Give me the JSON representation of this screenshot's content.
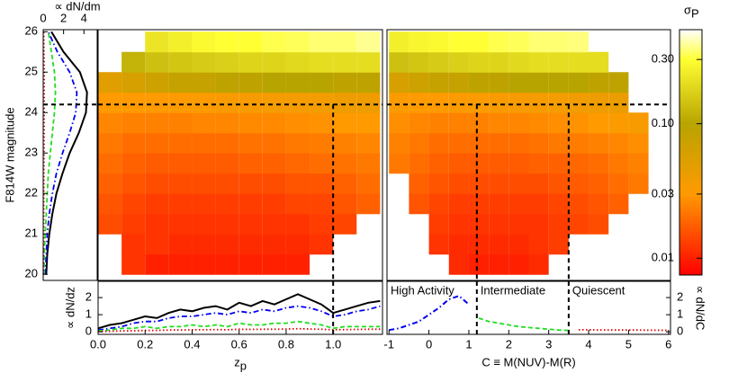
{
  "chart_data": [
    {
      "type": "line",
      "orientation": "horizontal",
      "xlabel": "∝ dN/dm",
      "ylabel": "F814W magnitude",
      "xlim": [
        0,
        5.3
      ],
      "xticks": [
        0,
        2,
        4
      ],
      "ylim": [
        19.85,
        26.05
      ],
      "yticks": [
        20,
        21,
        22,
        23,
        24,
        25,
        26
      ],
      "hlines": [
        24.2
      ],
      "y": [
        20,
        20.5,
        21,
        21.5,
        22,
        22.5,
        23,
        23.5,
        24,
        24.5,
        25,
        25.5,
        26
      ],
      "series": [
        {
          "color": "#000000",
          "dash": "solid",
          "values": [
            0.3,
            0.4,
            0.6,
            0.9,
            1.3,
            1.9,
            2.6,
            3.5,
            4.2,
            4.3,
            3.6,
            2.0,
            0.8
          ]
        },
        {
          "color": "#0000ee",
          "dash": "dashdot",
          "values": [
            0.2,
            0.3,
            0.4,
            0.6,
            0.9,
            1.3,
            1.9,
            2.6,
            3.2,
            3.3,
            2.6,
            1.4,
            0.5
          ]
        },
        {
          "color": "#22dd22",
          "dash": "dashed",
          "values": [
            0.1,
            0.1,
            0.2,
            0.3,
            0.4,
            0.5,
            0.7,
            0.9,
            1.1,
            1.2,
            1.1,
            0.8,
            0.5
          ]
        },
        {
          "color": "#dd0000",
          "dash": "dotted",
          "values": [
            0.02,
            0.03,
            0.04,
            0.05,
            0.06,
            0.07,
            0.08,
            0.09,
            0.1,
            0.1,
            0.1,
            0.08,
            0.05
          ]
        }
      ]
    },
    {
      "type": "heatmap",
      "xlim": [
        0,
        1.21
      ],
      "ylim": [
        19.85,
        26.05
      ],
      "hlines": [
        24.2
      ],
      "vlines": [
        1.0
      ],
      "xbins": [
        0,
        0.1,
        0.2,
        0.3,
        0.4,
        0.5,
        0.6,
        0.7,
        0.8,
        0.9,
        1.0,
        1.1,
        1.2
      ],
      "ybins": [
        20,
        20.5,
        21,
        21.5,
        22,
        22.5,
        23,
        23.5,
        24,
        24.5,
        25,
        25.5,
        26
      ],
      "values": [
        [
          null,
          0.012,
          0.01,
          0.01,
          0.01,
          0.01,
          0.01,
          0.01,
          0.01,
          null,
          null,
          null
        ],
        [
          null,
          0.012,
          0.012,
          0.011,
          0.011,
          0.011,
          0.011,
          0.011,
          0.011,
          0.012,
          null,
          null
        ],
        [
          0.015,
          0.013,
          0.012,
          0.012,
          0.012,
          0.012,
          0.012,
          0.012,
          0.012,
          0.013,
          0.014,
          null
        ],
        [
          0.016,
          0.014,
          0.013,
          0.013,
          0.013,
          0.013,
          0.013,
          0.013,
          0.014,
          0.014,
          0.016,
          0.018
        ],
        [
          0.018,
          0.016,
          0.015,
          0.015,
          0.015,
          0.015,
          0.015,
          0.015,
          0.016,
          0.016,
          0.018,
          0.02
        ],
        [
          0.02,
          0.018,
          0.017,
          0.017,
          0.017,
          0.017,
          0.018,
          0.018,
          0.019,
          0.02,
          0.021,
          0.022
        ],
        [
          0.022,
          0.02,
          0.02,
          0.02,
          0.02,
          0.02,
          0.021,
          0.021,
          0.022,
          0.023,
          0.024,
          0.025
        ],
        [
          0.025,
          0.024,
          0.024,
          0.024,
          0.025,
          0.025,
          0.026,
          0.026,
          0.027,
          0.028,
          0.03,
          0.03
        ],
        [
          0.03,
          0.03,
          0.03,
          0.031,
          0.032,
          0.033,
          0.034,
          0.035,
          0.036,
          0.037,
          0.04,
          0.04
        ],
        [
          0.05,
          0.06,
          0.07,
          0.08,
          0.08,
          0.09,
          0.09,
          0.1,
          0.1,
          0.1,
          0.09,
          0.09
        ],
        [
          null,
          0.12,
          0.14,
          0.15,
          0.16,
          0.17,
          0.18,
          0.18,
          0.19,
          0.2,
          0.2,
          0.2
        ],
        [
          null,
          null,
          0.22,
          0.25,
          0.28,
          0.3,
          0.3,
          0.32,
          0.33,
          0.35,
          0.35,
          0.38
        ]
      ]
    },
    {
      "type": "heatmap",
      "xlim": [
        -1.05,
        6.05
      ],
      "ylim": [
        19.85,
        26.05
      ],
      "hlines": [
        24.2
      ],
      "vlines": [
        1.2,
        3.5
      ],
      "xbins": [
        -1,
        -0.5,
        0,
        0.5,
        1,
        1.5,
        2,
        2.5,
        3,
        3.5,
        4,
        4.5,
        5,
        5.5,
        6
      ],
      "ybins": [
        20,
        20.5,
        21,
        21.5,
        22,
        22.5,
        23,
        23.5,
        24,
        24.5,
        25,
        25.5,
        26
      ],
      "values": [
        [
          null,
          null,
          null,
          0.011,
          0.01,
          0.01,
          0.01,
          0.011,
          null,
          null,
          null,
          null,
          null,
          null
        ],
        [
          null,
          null,
          0.012,
          0.011,
          0.011,
          0.011,
          0.011,
          0.012,
          0.013,
          null,
          null,
          null,
          null,
          null
        ],
        [
          null,
          null,
          0.013,
          0.012,
          0.012,
          0.012,
          0.012,
          0.012,
          0.013,
          0.014,
          0.015,
          null,
          null,
          null
        ],
        [
          null,
          0.016,
          0.014,
          0.013,
          0.013,
          0.013,
          0.013,
          0.013,
          0.014,
          0.015,
          0.016,
          0.018,
          null,
          null
        ],
        [
          null,
          0.018,
          0.016,
          0.015,
          0.015,
          0.015,
          0.015,
          0.015,
          0.016,
          0.017,
          0.018,
          0.02,
          0.022,
          null
        ],
        [
          0.022,
          0.02,
          0.018,
          0.017,
          0.017,
          0.017,
          0.017,
          0.018,
          0.018,
          0.019,
          0.02,
          0.022,
          0.024,
          null
        ],
        [
          0.024,
          0.022,
          0.02,
          0.02,
          0.02,
          0.02,
          0.02,
          0.021,
          0.022,
          0.023,
          0.024,
          0.025,
          0.027,
          null
        ],
        [
          0.027,
          0.025,
          0.024,
          0.024,
          0.024,
          0.025,
          0.025,
          0.026,
          0.027,
          0.028,
          0.03,
          0.032,
          0.034,
          null
        ],
        [
          0.032,
          0.03,
          0.03,
          0.031,
          0.032,
          0.033,
          0.034,
          0.035,
          0.036,
          0.038,
          0.04,
          0.042,
          null,
          null
        ],
        [
          0.06,
          0.07,
          0.08,
          0.08,
          0.09,
          0.09,
          0.1,
          0.1,
          0.1,
          0.1,
          0.09,
          0.09,
          null,
          null
        ],
        [
          0.14,
          0.15,
          0.16,
          0.17,
          0.18,
          0.18,
          0.19,
          0.2,
          0.2,
          0.2,
          0.2,
          null,
          null,
          null
        ],
        [
          0.25,
          0.27,
          0.28,
          0.3,
          0.3,
          0.32,
          0.33,
          0.35,
          0.35,
          0.36,
          null,
          null,
          null,
          null
        ]
      ]
    },
    {
      "type": "line",
      "xlabel": "z",
      "xlabel_sub": "p",
      "ylabel": "∝ dN/dz",
      "yaxis_side": "left",
      "xlim": [
        0,
        1.21
      ],
      "xticks": [
        {
          "value": 0,
          "label": "0.0"
        },
        {
          "value": 0.2,
          "label": "0.2"
        },
        {
          "value": 0.4,
          "label": "0.4"
        },
        {
          "value": 0.6,
          "label": "0.6"
        },
        {
          "value": 0.8,
          "label": "0.8"
        },
        {
          "value": 1,
          "label": "1.0"
        }
      ],
      "ylim": [
        -0.15,
        2.95
      ],
      "yticks": [
        0,
        1,
        2
      ],
      "vlines": [
        1.0
      ],
      "x": [
        0,
        0.05,
        0.1,
        0.15,
        0.2,
        0.25,
        0.3,
        0.35,
        0.4,
        0.45,
        0.5,
        0.55,
        0.6,
        0.65,
        0.7,
        0.75,
        0.8,
        0.85,
        0.9,
        0.95,
        1.0,
        1.05,
        1.1,
        1.15,
        1.2
      ],
      "series": [
        {
          "color": "#000000",
          "dash": "solid",
          "values": [
            0.2,
            0.4,
            0.5,
            0.7,
            0.9,
            0.8,
            1.1,
            1.3,
            1.2,
            1.4,
            1.5,
            1.3,
            1.7,
            1.5,
            1.8,
            1.6,
            1.9,
            2.2,
            1.9,
            1.6,
            1.1,
            1.3,
            1.5,
            1.7,
            1.8
          ]
        },
        {
          "color": "#0000ee",
          "dash": "dashdot",
          "values": [
            0.1,
            0.2,
            0.3,
            0.5,
            0.6,
            0.6,
            0.8,
            0.9,
            0.9,
            1.0,
            1.1,
            1.0,
            1.2,
            1.1,
            1.3,
            1.2,
            1.4,
            1.5,
            1.4,
            1.2,
            0.9,
            1.0,
            1.2,
            1.3,
            1.5
          ]
        },
        {
          "color": "#22dd22",
          "dash": "dashed",
          "values": [
            0.05,
            0.1,
            0.2,
            0.2,
            0.3,
            0.2,
            0.3,
            0.3,
            0.4,
            0.3,
            0.4,
            0.3,
            0.5,
            0.4,
            0.4,
            0.5,
            0.5,
            0.6,
            0.5,
            0.4,
            0.2,
            0.3,
            0.3,
            0.3,
            0.3
          ]
        },
        {
          "color": "#dd0000",
          "dash": "dotted",
          "values": [
            0.02,
            0.03,
            0.05,
            0.06,
            0.08,
            0.08,
            0.1,
            0.1,
            0.12,
            0.12,
            0.13,
            0.12,
            0.15,
            0.14,
            0.15,
            0.15,
            0.16,
            0.18,
            0.16,
            0.15,
            0.12,
            0.13,
            0.14,
            0.15,
            0.15
          ]
        }
      ]
    },
    {
      "type": "line",
      "xlabel": "C ≡ M(NUV)-M(R)",
      "ylabel": "∝ dN/dC",
      "yaxis_side": "right",
      "xlim": [
        -1.05,
        6.05
      ],
      "xticks": [
        -1,
        0,
        1,
        2,
        3,
        4,
        5,
        6
      ],
      "ylim": [
        -0.15,
        2.95
      ],
      "yticks": [
        0,
        1,
        2
      ],
      "vlines": [
        1.2,
        3.5
      ],
      "annotations": [
        "High Activity",
        "Intermediate",
        "Quiescent"
      ],
      "x": [
        -1,
        -0.75,
        -0.5,
        -0.25,
        0,
        0.25,
        0.5,
        0.75,
        1,
        1.25,
        1.5,
        1.75,
        2,
        2.25,
        2.5,
        2.75,
        3,
        3.25,
        3.5,
        3.75,
        4,
        4.25,
        4.5,
        4.75,
        5,
        5.25,
        5.5,
        5.75,
        6
      ],
      "series": [
        {
          "color": "#0000ee",
          "dash": "dashdot",
          "values": [
            0.1,
            0.2,
            0.4,
            0.6,
            1.0,
            1.4,
            1.9,
            2.1,
            1.6,
            null,
            null,
            null,
            null,
            null,
            null,
            null,
            null,
            null,
            null,
            null,
            null,
            null,
            null,
            null,
            null,
            null,
            null,
            null,
            null
          ]
        },
        {
          "color": "#22dd22",
          "dash": "dashed",
          "values": [
            null,
            null,
            null,
            null,
            null,
            null,
            null,
            null,
            null,
            0.8,
            0.6,
            0.5,
            0.4,
            0.3,
            0.25,
            0.2,
            0.15,
            0.1,
            0.08,
            null,
            null,
            null,
            null,
            null,
            null,
            null,
            null,
            null,
            null
          ]
        },
        {
          "color": "#dd0000",
          "dash": "dotted",
          "values": [
            null,
            null,
            null,
            null,
            null,
            null,
            null,
            null,
            null,
            null,
            null,
            null,
            null,
            null,
            null,
            null,
            null,
            null,
            null,
            0.12,
            0.12,
            0.11,
            0.11,
            0.1,
            0.1,
            0.1,
            0.09,
            0.09,
            0.08
          ]
        }
      ]
    },
    {
      "type": "colorbar",
      "label": "σ",
      "label_sub": "P",
      "log": true,
      "lim": [
        0.0075,
        0.5
      ],
      "ticks": [
        0.01,
        0.03,
        {
          "value": 0.1,
          "label": "0.10"
        },
        {
          "value": 0.3,
          "label": "0.30"
        }
      ],
      "colorscale": [
        {
          "value": 0.0075,
          "color": "#ff0000"
        },
        {
          "value": 0.03,
          "color": "#ff9a00"
        },
        {
          "value": 0.1,
          "color": "#b8a400"
        },
        {
          "value": 0.3,
          "color": "#ffff33"
        },
        {
          "value": 0.5,
          "color": "#ffffff"
        }
      ]
    }
  ]
}
